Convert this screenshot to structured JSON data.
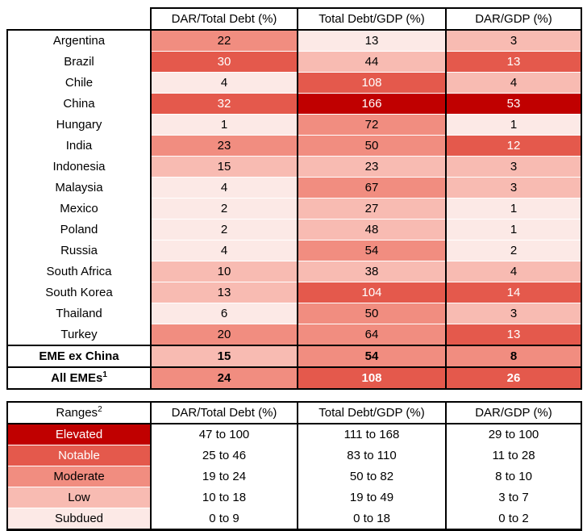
{
  "palette": {
    "elevated": {
      "bg": "#C00000",
      "text": "#FFFFFF"
    },
    "notable": {
      "bg": "#E4594C",
      "text": "#FFFFFF"
    },
    "moderate": {
      "bg": "#F18D80",
      "text": "#000000"
    },
    "low": {
      "bg": "#F8BBB2",
      "text": "#000000"
    },
    "subdued": {
      "bg": "#FCE9E6",
      "text": "#000000"
    }
  },
  "chart_data": {
    "type": "heatmap",
    "columns": [
      "DAR/Total Debt (%)",
      "Total Debt/GDP (%)",
      "DAR/GDP (%)"
    ],
    "main_table": {
      "rows": [
        {
          "label": "Argentina",
          "values": [
            22,
            13,
            3
          ],
          "levels": [
            "moderate",
            "subdued",
            "low"
          ]
        },
        {
          "label": "Brazil",
          "values": [
            30,
            44,
            13
          ],
          "levels": [
            "notable",
            "low",
            "notable"
          ]
        },
        {
          "label": "Chile",
          "values": [
            4,
            108,
            4
          ],
          "levels": [
            "subdued",
            "notable",
            "low"
          ]
        },
        {
          "label": "China",
          "values": [
            32,
            166,
            53
          ],
          "levels": [
            "notable",
            "elevated",
            "elevated"
          ]
        },
        {
          "label": "Hungary",
          "values": [
            1,
            72,
            1
          ],
          "levels": [
            "subdued",
            "moderate",
            "subdued"
          ]
        },
        {
          "label": "India",
          "values": [
            23,
            50,
            12
          ],
          "levels": [
            "moderate",
            "moderate",
            "notable"
          ]
        },
        {
          "label": "Indonesia",
          "values": [
            15,
            23,
            3
          ],
          "levels": [
            "low",
            "low",
            "low"
          ]
        },
        {
          "label": "Malaysia",
          "values": [
            4,
            67,
            3
          ],
          "levels": [
            "subdued",
            "moderate",
            "low"
          ]
        },
        {
          "label": "Mexico",
          "values": [
            2,
            27,
            1
          ],
          "levels": [
            "subdued",
            "low",
            "subdued"
          ]
        },
        {
          "label": "Poland",
          "values": [
            2,
            48,
            1
          ],
          "levels": [
            "subdued",
            "low",
            "subdued"
          ]
        },
        {
          "label": "Russia",
          "values": [
            4,
            54,
            2
          ],
          "levels": [
            "subdued",
            "moderate",
            "subdued"
          ]
        },
        {
          "label": "South Africa",
          "values": [
            10,
            38,
            4
          ],
          "levels": [
            "low",
            "low",
            "low"
          ]
        },
        {
          "label": "South Korea",
          "values": [
            13,
            104,
            14
          ],
          "levels": [
            "low",
            "notable",
            "notable"
          ]
        },
        {
          "label": "Thailand",
          "values": [
            6,
            50,
            3
          ],
          "levels": [
            "subdued",
            "moderate",
            "low"
          ]
        },
        {
          "label": "Turkey",
          "values": [
            20,
            64,
            13
          ],
          "levels": [
            "moderate",
            "moderate",
            "notable"
          ]
        },
        {
          "label": "EME ex China",
          "bold": true,
          "aggregate": true,
          "values": [
            15,
            54,
            8
          ],
          "levels": [
            "low",
            "moderate",
            "moderate"
          ]
        },
        {
          "label": "All EMEs",
          "sup": "1",
          "bold": true,
          "aggregate": true,
          "values": [
            24,
            108,
            26
          ],
          "levels": [
            "moderate",
            "notable",
            "notable"
          ]
        }
      ]
    },
    "ranges_table": {
      "label": "Ranges",
      "sup": "2",
      "rows": [
        {
          "label": "Elevated",
          "level": "elevated",
          "values": [
            "47 to 100",
            "111 to 168",
            "29 to 100"
          ]
        },
        {
          "label": "Notable",
          "level": "notable",
          "values": [
            "25 to 46",
            "83 to 110",
            "11 to 28"
          ]
        },
        {
          "label": "Moderate",
          "level": "moderate",
          "values": [
            "19 to 24",
            "50 to 82",
            "8 to 10"
          ]
        },
        {
          "label": "Low",
          "level": "low",
          "values": [
            "10 to 18",
            "19 to 49",
            "3 to 7"
          ]
        },
        {
          "label": "Subdued",
          "level": "subdued",
          "values": [
            "0 to 9",
            "0 to 18",
            "0 to 2"
          ]
        }
      ]
    }
  }
}
